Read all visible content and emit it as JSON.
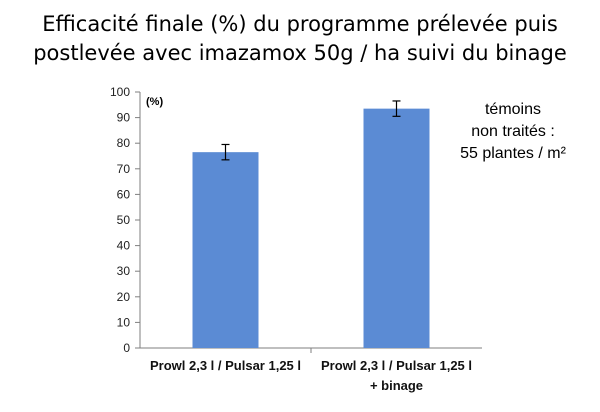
{
  "title_lines": [
    "Efficacité finale (%) du programme prélevée puis",
    "postlevée avec imazamox 50g / ha suivi du binage"
  ],
  "annotation_lines": [
    "témoins",
    "non traités :",
    "55 plantes / m²"
  ],
  "chart_data": {
    "type": "bar",
    "title": "Efficacité finale (%) du programme prélevée puis postlevée avec imazamox 50g / ha suivi du binage",
    "ylabel": "(%)",
    "ylim": [
      0,
      100
    ],
    "yticks": [
      0,
      10,
      20,
      30,
      40,
      50,
      60,
      70,
      80,
      90,
      100
    ],
    "categories": [
      [
        "Prowl 2,3 l / Pulsar 1,25 l"
      ],
      [
        "Prowl 2,3 l / Pulsar 1,25 l",
        "+ binage"
      ]
    ],
    "values": [
      76.5,
      93.5
    ],
    "error": [
      3,
      3
    ],
    "bar_color": "#5b8bd4",
    "grid": false
  }
}
